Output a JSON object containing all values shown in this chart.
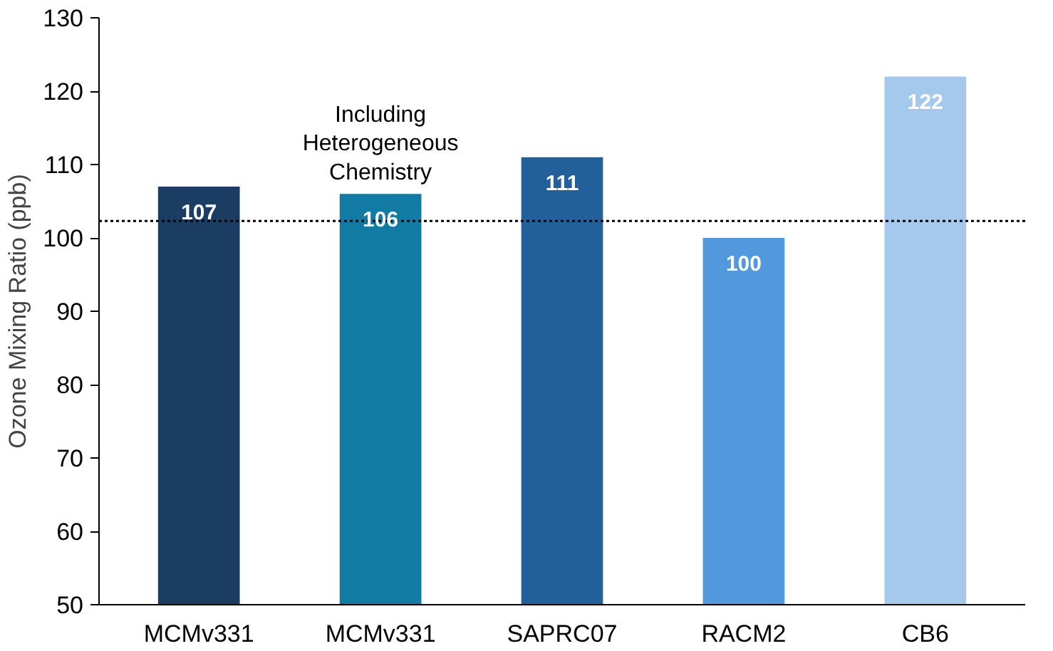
{
  "chart_data": {
    "type": "bar",
    "ylabel": "Ozone Mixing Ratio (ppb)",
    "categories": [
      "MCMv331",
      "MCMv331",
      "SAPRC07",
      "RACM2",
      "CB6"
    ],
    "values": [
      107,
      106,
      111,
      100,
      122
    ],
    "colors": [
      "#1b3d63",
      "#117ba3",
      "#21609b",
      "#5199dc",
      "#a5c9ec"
    ],
    "ylim": [
      50,
      130
    ],
    "yticks": [
      50,
      60,
      70,
      80,
      90,
      100,
      110,
      120,
      130
    ],
    "data_labels": true,
    "grid": false,
    "ref_lines": [
      {
        "axis": "y",
        "value": 102.3,
        "color": "#000000",
        "line_style": "dotted"
      }
    ],
    "annotations": [
      "Including\nHeterogeneous\nChemistry"
    ]
  }
}
